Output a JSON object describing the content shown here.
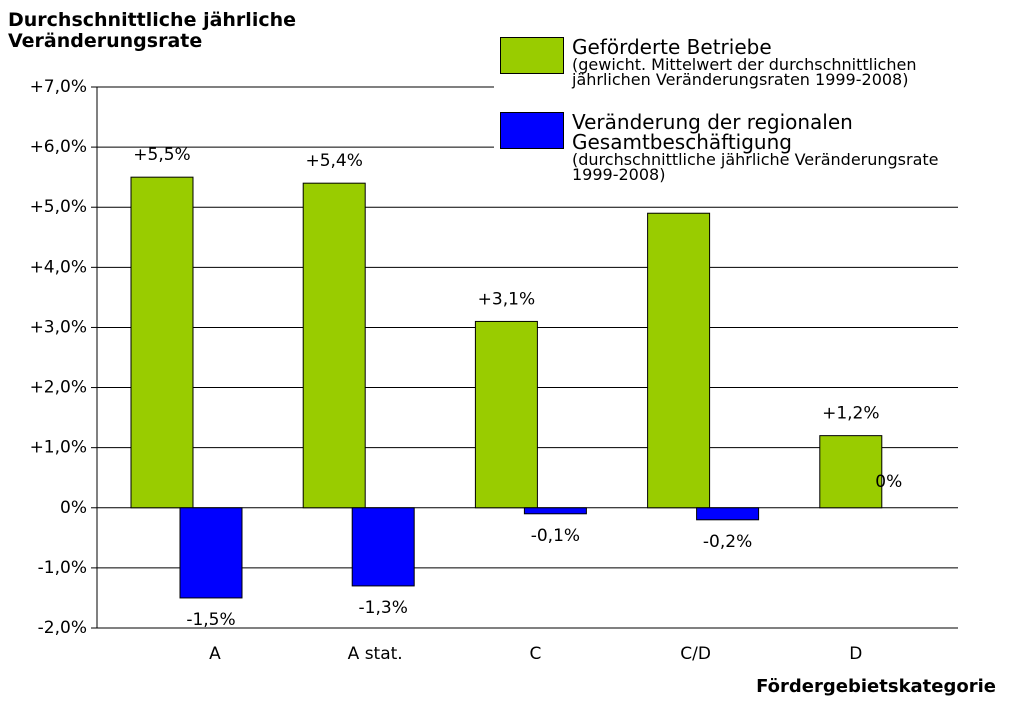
{
  "chart_data": {
    "type": "bar",
    "title": "Durchschnittliche jährliche Veränderungsrate",
    "x_label": "Fördergebietskategorie",
    "categories": [
      "A",
      "A stat.",
      "C",
      "C/D",
      "D"
    ],
    "series": [
      {
        "name": "Geförderte Betriebe",
        "note": "(gewicht. Mittelwert der durchschnittlichen jährlichen Veränderungsraten 1999-2008)",
        "color": "#99cc00",
        "values": [
          5.5,
          5.4,
          3.1,
          4.9,
          1.2
        ],
        "value_labels": [
          "+5,5%",
          "+5,4%",
          "+3,1%",
          null,
          "+1,2%"
        ]
      },
      {
        "name": "Veränderung der regionalen Gesamtbeschäftigung",
        "note": "(durchschnittliche jährliche Veränderungsrate 1999-2008)",
        "color": "#0000ff",
        "values": [
          -1.5,
          -1.3,
          -0.1,
          -0.2,
          0
        ],
        "value_labels": [
          "-1,5%",
          "-1,3%",
          "-0,1%",
          "-0,2%",
          "0%"
        ]
      }
    ],
    "ylim": [
      -2,
      7
    ],
    "yticks": [
      {
        "value": -2,
        "label": "-2,0%"
      },
      {
        "value": -1,
        "label": "-1,0%"
      },
      {
        "value": 0,
        "label": "0%"
      },
      {
        "value": 1,
        "label": "+1,0%"
      },
      {
        "value": 2,
        "label": "+2,0%"
      },
      {
        "value": 3,
        "label": "+3,0%"
      },
      {
        "value": 4,
        "label": "+4,0%"
      },
      {
        "value": 5,
        "label": "+5,0%"
      },
      {
        "value": 6,
        "label": "+6,0%"
      },
      {
        "value": 7,
        "label": "+7,0%"
      }
    ],
    "grid": true
  }
}
